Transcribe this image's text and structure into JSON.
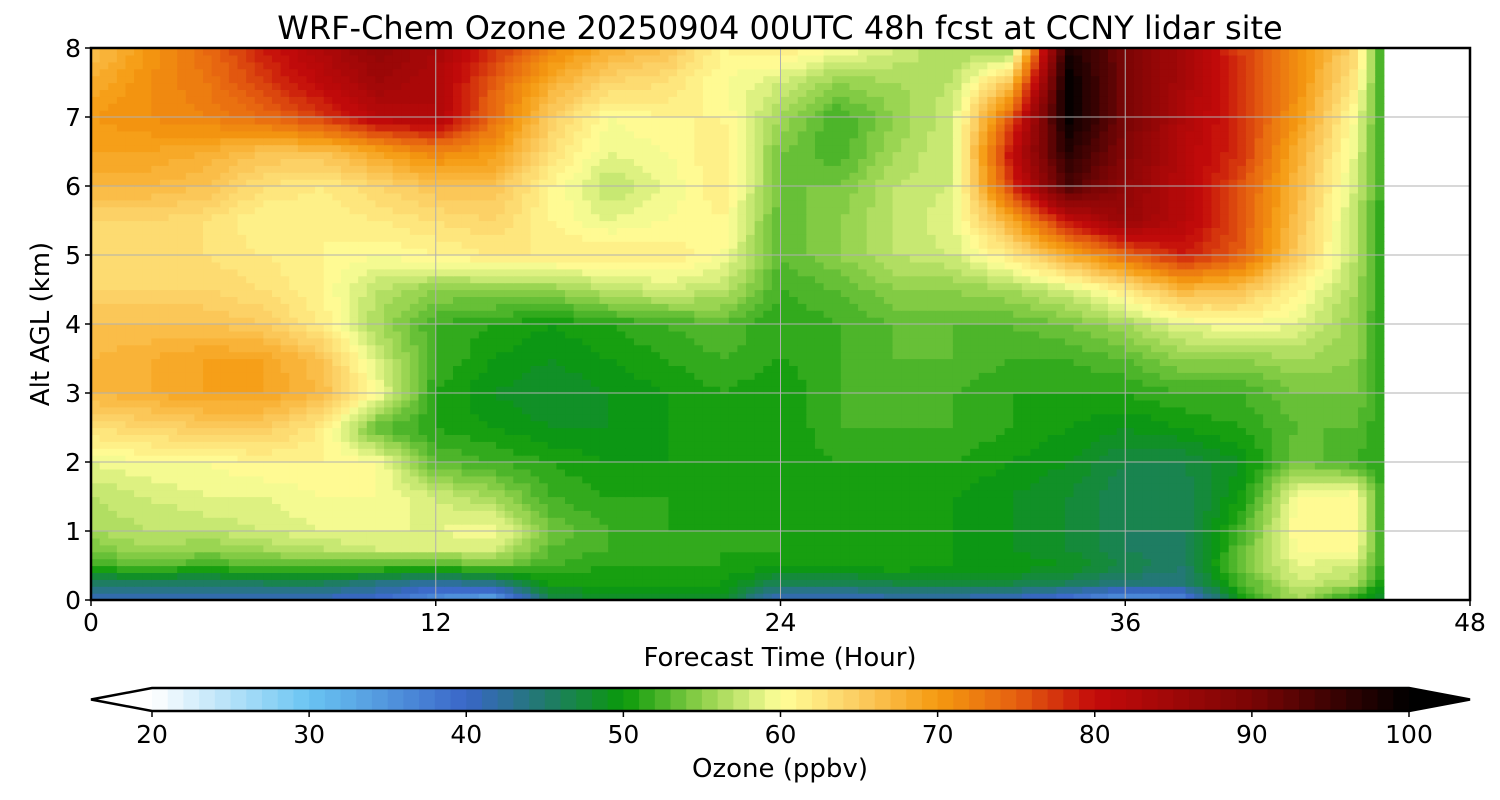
{
  "chart_data": {
    "type": "heatmap",
    "title": "WRF-Chem Ozone  20250904 00UTC 48h fcst at CCNY lidar site",
    "xlabel": "Forecast Time (Hour)",
    "ylabel": "Alt AGL (km)",
    "xlim": [
      0,
      48
    ],
    "ylim": [
      0,
      8
    ],
    "x_ticks": [
      "0",
      "12",
      "24",
      "36",
      "48"
    ],
    "y_ticks": [
      "0",
      "1",
      "2",
      "3",
      "4",
      "5",
      "6",
      "7",
      "8"
    ],
    "grid": true,
    "colorbar": {
      "label": "Ozone  (ppbv)",
      "min": 20,
      "max": 100,
      "step": 1,
      "extend": "both",
      "ticks": [
        "20",
        "30",
        "40",
        "50",
        "60",
        "70",
        "80",
        "90",
        "100"
      ],
      "color_stops": [
        [
          20,
          "#ffffff"
        ],
        [
          30,
          "#69c4f2"
        ],
        [
          40,
          "#3a66c8"
        ],
        [
          45,
          "#207a6c"
        ],
        [
          50,
          "#0a9a0a"
        ],
        [
          55,
          "#8fd04a"
        ],
        [
          60,
          "#ffff99"
        ],
        [
          65,
          "#fccc60"
        ],
        [
          70,
          "#f59a10"
        ],
        [
          75,
          "#e56010"
        ],
        [
          80,
          "#c40a0a"
        ],
        [
          90,
          "#7a0505"
        ],
        [
          100,
          "#000000"
        ]
      ]
    },
    "x_hours": [
      0,
      2,
      4,
      6,
      8,
      10,
      12,
      14,
      16,
      18,
      20,
      22,
      24,
      26,
      28,
      30,
      32,
      34,
      36,
      38,
      40,
      42,
      44,
      45
    ],
    "y_km": [
      0,
      0.25,
      0.5,
      0.75,
      1,
      1.5,
      2,
      2.5,
      3,
      3.5,
      4,
      4.5,
      5,
      5.5,
      6,
      6.5,
      7,
      7.5,
      8
    ],
    "ozone_ppbv": [
      [
        40,
        40,
        40,
        40,
        40,
        39,
        35,
        32,
        47,
        48,
        48,
        48,
        40,
        40,
        41,
        41,
        40,
        38,
        34,
        36,
        50,
        56,
        50,
        47
      ],
      [
        45,
        45,
        45,
        46,
        46,
        44,
        42,
        44,
        50,
        50,
        50,
        50,
        46,
        46,
        47,
        47,
        47,
        46,
        44,
        44,
        52,
        58,
        56,
        50
      ],
      [
        52,
        53,
        52,
        53,
        53,
        53,
        52,
        54,
        52,
        51,
        51,
        51,
        50,
        50,
        51,
        50,
        50,
        49,
        47,
        45,
        54,
        59,
        58,
        51
      ],
      [
        54,
        56,
        55,
        56,
        57,
        58,
        58,
        58,
        53,
        52,
        51,
        51,
        51,
        50,
        51,
        50,
        49,
        48,
        46,
        45,
        53,
        60,
        60,
        51
      ],
      [
        56,
        57,
        57,
        58,
        59,
        59,
        59,
        60,
        54,
        52,
        51,
        51,
        51,
        50,
        51,
        50,
        49,
        48,
        46,
        46,
        52,
        61,
        61,
        51
      ],
      [
        57,
        58,
        59,
        59,
        60,
        60,
        58,
        56,
        52,
        51,
        51,
        50,
        50,
        50,
        51,
        50,
        49,
        48,
        46,
        46,
        50,
        60,
        61,
        51
      ],
      [
        59,
        60,
        60,
        61,
        61,
        60,
        53,
        52,
        51,
        50,
        50,
        51,
        50,
        51,
        51,
        51,
        50,
        49,
        47,
        47,
        49,
        54,
        52,
        51
      ],
      [
        63,
        64,
        65,
        65,
        62,
        53,
        51,
        50,
        49,
        49,
        50,
        51,
        50,
        52,
        52,
        52,
        51,
        50,
        49,
        50,
        51,
        53,
        53,
        51
      ],
      [
        67,
        68,
        69,
        69,
        67,
        60,
        51,
        49,
        48,
        49,
        50,
        51,
        50,
        52,
        53,
        52,
        51,
        51,
        51,
        52,
        52,
        54,
        54,
        51
      ],
      [
        67,
        68,
        69,
        69,
        66,
        58,
        52,
        50,
        49,
        50,
        51,
        52,
        51,
        52,
        53,
        53,
        52,
        52,
        53,
        55,
        55,
        56,
        55,
        51
      ],
      [
        66,
        66,
        66,
        65,
        62,
        56,
        52,
        51,
        50,
        51,
        52,
        53,
        51,
        52,
        53,
        53,
        53,
        54,
        56,
        59,
        60,
        59,
        55,
        51
      ],
      [
        64,
        64,
        64,
        63,
        61,
        57,
        55,
        55,
        55,
        57,
        58,
        57,
        52,
        53,
        55,
        55,
        56,
        58,
        62,
        67,
        66,
        61,
        56,
        51
      ],
      [
        63,
        63,
        63,
        62,
        61,
        60,
        61,
        62,
        62,
        62,
        62,
        60,
        53,
        55,
        57,
        58,
        62,
        68,
        74,
        79,
        75,
        65,
        57,
        51
      ],
      [
        64,
        64,
        63,
        61,
        61,
        62,
        63,
        64,
        61,
        59,
        60,
        61,
        53,
        55,
        57,
        59,
        68,
        80,
        86,
        82,
        76,
        66,
        57,
        51
      ],
      [
        67,
        67,
        66,
        63,
        62,
        64,
        66,
        66,
        61,
        57,
        59,
        62,
        54,
        54,
        57,
        58,
        77,
        94,
        87,
        82,
        76,
        67,
        58,
        51
      ],
      [
        69,
        69,
        68,
        66,
        66,
        69,
        72,
        70,
        63,
        59,
        60,
        62,
        54,
        52,
        56,
        58,
        80,
        97,
        89,
        82,
        78,
        68,
        59,
        51
      ],
      [
        70,
        71,
        72,
        74,
        77,
        82,
        83,
        74,
        65,
        60,
        61,
        61,
        56,
        52,
        55,
        58,
        75,
        100,
        90,
        83,
        78,
        70,
        60,
        51
      ],
      [
        68,
        71,
        73,
        77,
        81,
        85,
        83,
        75,
        68,
        64,
        63,
        60,
        58,
        55,
        56,
        57,
        66,
        100,
        90,
        84,
        78,
        71,
        62,
        51
      ],
      [
        66,
        70,
        74,
        79,
        83,
        87,
        84,
        78,
        72,
        68,
        66,
        61,
        62,
        60,
        58,
        56,
        55,
        98,
        90,
        84,
        77,
        71,
        64,
        51
      ]
    ]
  }
}
